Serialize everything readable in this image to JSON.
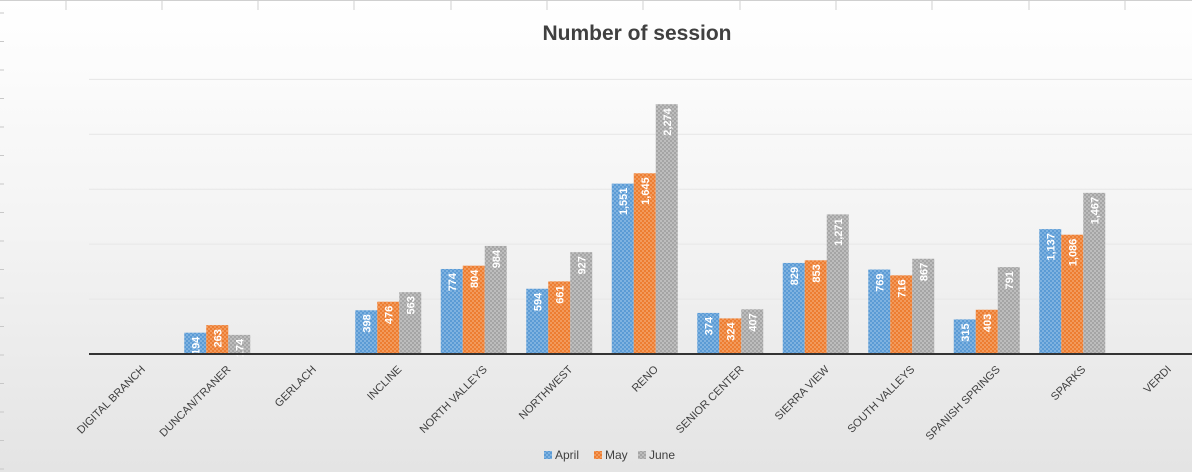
{
  "chart_data": {
    "type": "bar",
    "title": "Number of session",
    "categories": [
      "DIGITAL BRANCH",
      "DUNCAN/TRANER",
      "GERLACH",
      "INCLINE",
      "NORTH VALLEYS",
      "NORTHWEST",
      "RENO",
      "SENIOR CENTER",
      "SIERRA VIEW",
      "SOUTH VALLEYS",
      "SPANISH SPRINGS",
      "SPARKS",
      "VERDI"
    ],
    "series": [
      {
        "name": "April",
        "color": "#5b9bd5",
        "values": [
          null,
          194,
          null,
          398,
          774,
          594,
          1551,
          374,
          829,
          769,
          315,
          1137,
          null
        ],
        "labels": [
          "",
          "194",
          "",
          "398",
          "774",
          "594",
          "1,551",
          "374",
          "829",
          "769",
          "315",
          "1,137",
          ""
        ]
      },
      {
        "name": "May",
        "color": "#ed7d31",
        "values": [
          null,
          263,
          null,
          476,
          804,
          661,
          1645,
          324,
          853,
          716,
          403,
          1086,
          null
        ],
        "labels": [
          "",
          "263",
          "",
          "476",
          "804",
          "661",
          "1,645",
          "324",
          "853",
          "716",
          "403",
          "1,086",
          ""
        ]
      },
      {
        "name": "June",
        "color": "#a5a5a5",
        "values": [
          null,
          174,
          null,
          563,
          984,
          927,
          2274,
          407,
          1271,
          867,
          791,
          1467,
          null
        ],
        "labels": [
          "",
          "174",
          "",
          "563",
          "984",
          "927",
          "2,274",
          "407",
          "1,271",
          "867",
          "791",
          "1,467",
          ""
        ]
      }
    ],
    "ylim": [
      0,
      2500
    ],
    "grid": true,
    "legend": "bottom-center"
  }
}
